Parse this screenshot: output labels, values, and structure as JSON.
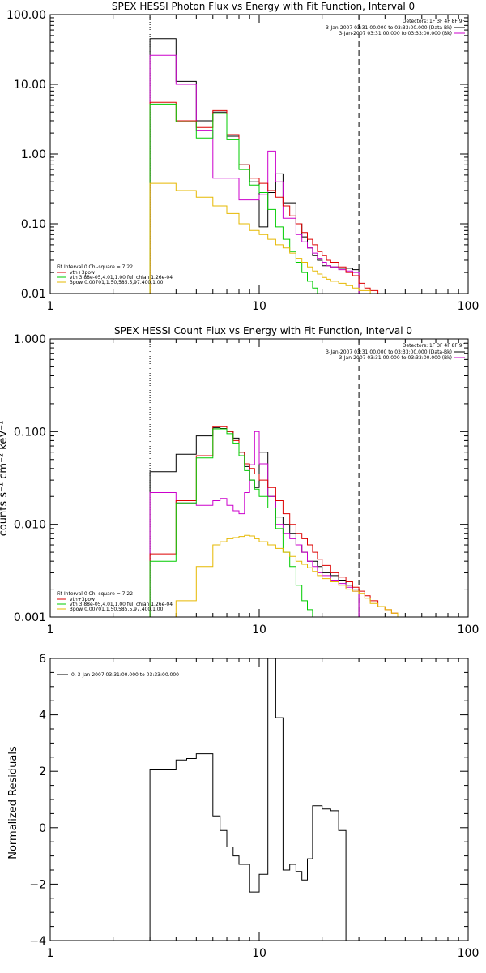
{
  "chart_data": [
    {
      "id": "photon",
      "type": "line",
      "title": "SPEX HESSI Photon Flux vs Energy with Fit Function, Interval 0",
      "xscale": "log",
      "yscale": "log",
      "xlim": [
        1,
        100
      ],
      "ylim": [
        0.01,
        100
      ],
      "xticks": [
        1,
        10,
        100
      ],
      "xtick_labels": [
        "1",
        "10",
        "100"
      ],
      "yticks": [
        0.01,
        0.1,
        1,
        10,
        100
      ],
      "ytick_labels": [
        "0.01",
        "0.10",
        "1.00",
        "10.00",
        "100.00"
      ],
      "vlines": [
        {
          "x": 3,
          "style": "dotted"
        },
        {
          "x": 30,
          "style": "dashed"
        }
      ],
      "legend_right": [
        "Detectors: 1F 3F 4F 8F 9F",
        "3-Jan-2007 03:31:00.000 to 03:33:00.000 (Data-Bk)",
        "3-Jan-2007 03:31:00.000 to 03:33:00.000 (Bk)"
      ],
      "legend_left": [
        "Fit Interval 0   Chi-square = 7.22",
        "vth+3pow",
        "vth 3.88e-05,4.01,1.00  full chian 1.26e-04",
        "3pow 0.00701,1.50,585.5,97.400,1.00"
      ],
      "edges": [
        3,
        3.5,
        4,
        4.5,
        5,
        5.5,
        6,
        6.5,
        7,
        7.5,
        8,
        8.5,
        9,
        9.5,
        10,
        10.5,
        11,
        11.5,
        12,
        12.5,
        13,
        14,
        15,
        16,
        17,
        18,
        19,
        20,
        21,
        22,
        24,
        26,
        28,
        30,
        32,
        34,
        37,
        40,
        43
      ],
      "series": [
        {
          "color": "#000000",
          "values": [
            45,
            45,
            11,
            11,
            3,
            3,
            4,
            4,
            1.8,
            1.8,
            0.7,
            0.7,
            0.4,
            0.4,
            0.09,
            0.09,
            0.28,
            0.28,
            0.52,
            0.52,
            0.2,
            0.2,
            0.1,
            0.065,
            0.045,
            0.035,
            0.03,
            0.025,
            0.025,
            0.024,
            0.023,
            0.023,
            0.022,
            null,
            null,
            null,
            null,
            null
          ]
        },
        {
          "color": "#cc00cc",
          "values": [
            26,
            26,
            10,
            10,
            2.2,
            2.2,
            0.45,
            0.45,
            0.45,
            0.45,
            0.22,
            0.22,
            0.22,
            0.22,
            0.26,
            0.26,
            1.1,
            1.1,
            0.4,
            0.4,
            0.12,
            0.12,
            0.07,
            0.055,
            0.045,
            0.038,
            0.032,
            0.028,
            0.025,
            0.024,
            0.022,
            0.021,
            0.02,
            null,
            null,
            null,
            null,
            null
          ]
        },
        {
          "color": "#dd0000",
          "values": [
            5.5,
            5.5,
            3,
            3,
            2.4,
            2.4,
            4.2,
            4.2,
            1.9,
            1.9,
            0.7,
            0.7,
            0.45,
            0.45,
            0.38,
            0.38,
            0.3,
            0.3,
            0.24,
            0.24,
            0.18,
            0.13,
            0.1,
            0.075,
            0.06,
            0.05,
            0.04,
            0.035,
            0.03,
            0.028,
            0.024,
            0.02,
            0.018,
            0.014,
            0.012,
            0.011,
            0.01,
            null
          ]
        },
        {
          "color": "#00cc00",
          "values": [
            5.2,
            5.2,
            2.9,
            2.9,
            1.7,
            1.7,
            3.8,
            3.8,
            1.6,
            1.6,
            0.6,
            0.6,
            0.36,
            0.36,
            0.28,
            0.28,
            0.16,
            0.16,
            0.09,
            0.09,
            0.06,
            0.04,
            0.028,
            0.02,
            0.015,
            0.012,
            0.01,
            null,
            null,
            null,
            null,
            null,
            null,
            null,
            null,
            null,
            null,
            null
          ]
        },
        {
          "color": "#e6b800",
          "values": [
            0.38,
            0.38,
            0.3,
            0.3,
            0.24,
            0.24,
            0.18,
            0.18,
            0.14,
            0.14,
            0.1,
            0.1,
            0.08,
            0.08,
            0.07,
            0.07,
            0.06,
            0.06,
            0.05,
            0.05,
            0.045,
            0.038,
            0.032,
            0.028,
            0.024,
            0.021,
            0.019,
            0.017,
            0.016,
            0.015,
            0.014,
            0.013,
            0.012,
            0.011,
            0.011,
            0.01,
            0.01,
            0.01
          ]
        }
      ]
    },
    {
      "id": "count",
      "type": "line",
      "title": "SPEX HESSI Count Flux vs Energy with Fit Function, Interval 0",
      "ylabel": "counts s⁻¹ cm⁻² keV⁻¹",
      "xscale": "log",
      "yscale": "log",
      "xlim": [
        1,
        100
      ],
      "ylim": [
        0.001,
        1
      ],
      "xticks": [
        1,
        10,
        100
      ],
      "xtick_labels": [
        "1",
        "10",
        "100"
      ],
      "yticks": [
        0.001,
        0.01,
        0.1,
        1
      ],
      "ytick_labels": [
        "0.001",
        "0.010",
        "0.100",
        "1.000"
      ],
      "vlines": [
        {
          "x": 3,
          "style": "dotted"
        },
        {
          "x": 30,
          "style": "dashed"
        }
      ],
      "legend_right": [
        "Detectors: 1F 3F 4F 8F 9F",
        "3-Jan-2007 03:31:00.000 to 03:33:00.000 (Data-Bk)",
        "3-Jan-2007 03:31:00.000 to 03:33:00.000 (Bk)"
      ],
      "legend_left": [
        "Fit Interval 0   Chi-square = 7.22",
        "vth+3pow",
        "vth 3.88e-05,4.01,1.00  full chian 1.26e-04",
        "3pow 0.00701,1.50,585.5,97.400,1.00"
      ],
      "edges": [
        3,
        4,
        5,
        6,
        6.5,
        7,
        7.5,
        8,
        8.5,
        9,
        9.5,
        10,
        11,
        12,
        13,
        14,
        15,
        16,
        17,
        18,
        19,
        20,
        22,
        24,
        26,
        28,
        30,
        32,
        34,
        37,
        40,
        43,
        46,
        50,
        54,
        58,
        62
      ],
      "series": [
        {
          "color": "#000000",
          "values": [
            0.037,
            0.057,
            0.09,
            0.11,
            0.108,
            0.1,
            0.085,
            0.06,
            0.042,
            0.03,
            0.025,
            0.06,
            0.02,
            0.012,
            0.01,
            0.008,
            0.006,
            0.005,
            0.004,
            0.004,
            0.0035,
            0.003,
            0.0028,
            0.0025,
            0.0022,
            0.002,
            null,
            null,
            null,
            null,
            null,
            null,
            null,
            null,
            null,
            null
          ]
        },
        {
          "color": "#cc00cc",
          "values": [
            0.022,
            0.017,
            0.016,
            0.018,
            0.019,
            0.016,
            0.014,
            0.013,
            0.022,
            0.044,
            0.1,
            0.045,
            0.02,
            0.01,
            0.008,
            0.007,
            0.006,
            0.005,
            0.004,
            0.0035,
            0.003,
            0.0028,
            0.0025,
            0.0023,
            0.0021,
            0.0019,
            null,
            null,
            null,
            null,
            null,
            null,
            null,
            null,
            null,
            null
          ]
        },
        {
          "color": "#dd0000",
          "values": [
            0.0048,
            0.018,
            0.055,
            0.113,
            0.113,
            0.1,
            0.08,
            0.06,
            0.045,
            0.04,
            0.035,
            0.03,
            0.025,
            0.018,
            0.013,
            0.01,
            0.008,
            0.007,
            0.006,
            0.005,
            0.0042,
            0.0036,
            0.003,
            0.0027,
            0.0024,
            0.0021,
            0.0019,
            0.0017,
            0.0015,
            0.0013,
            0.0012,
            0.0011,
            0.001,
            null,
            null,
            null
          ]
        },
        {
          "color": "#00cc00",
          "values": [
            0.004,
            0.017,
            0.052,
            0.107,
            0.107,
            0.095,
            0.075,
            0.055,
            0.038,
            0.03,
            0.024,
            0.02,
            0.015,
            0.009,
            0.005,
            0.0035,
            0.0022,
            0.0015,
            0.0012,
            0.001,
            null,
            null,
            null,
            null,
            null,
            null,
            null,
            null,
            null,
            null,
            null,
            null,
            null,
            null,
            null,
            null
          ]
        },
        {
          "color": "#e6b800",
          "values": [
            0.001,
            0.0015,
            0.0035,
            0.006,
            0.0065,
            0.007,
            0.0072,
            0.0074,
            0.0076,
            0.0075,
            0.007,
            0.0065,
            0.006,
            0.0055,
            0.005,
            0.0045,
            0.004,
            0.0037,
            0.0034,
            0.0031,
            0.0028,
            0.0026,
            0.0024,
            0.0022,
            0.002,
            0.0019,
            0.0018,
            0.0016,
            0.0014,
            0.0013,
            0.0012,
            0.0011,
            0.001,
            0.001,
            0.001,
            0.001
          ]
        }
      ]
    },
    {
      "id": "residuals",
      "type": "line",
      "title": "",
      "ylabel": "Normalized Residuals",
      "xscale": "log",
      "yscale": "linear",
      "xlim": [
        1,
        100
      ],
      "ylim": [
        -4,
        6
      ],
      "xticks": [
        1,
        10,
        100
      ],
      "xtick_labels": [
        "1",
        "10",
        "100"
      ],
      "yticks": [
        -4,
        -2,
        0,
        2,
        4,
        6
      ],
      "ytick_labels": [
        "−4",
        "−2",
        "0",
        "2",
        "4",
        "6"
      ],
      "legend_left": [
        "0. 3-Jan-2007 03:31:00.000 to 03:33:00.000"
      ],
      "edges": [
        3,
        4,
        4.5,
        5,
        6,
        6.5,
        7,
        7.5,
        8,
        9,
        10,
        11,
        12,
        13,
        14,
        15,
        16,
        17,
        18,
        20,
        22,
        24,
        26,
        28,
        30
      ],
      "series": [
        {
          "color": "#000000",
          "values": [
            2.05,
            2.4,
            2.45,
            2.62,
            0.42,
            -0.1,
            -0.68,
            -1.0,
            -1.3,
            -2.28,
            -1.65,
            6.0,
            3.9,
            -1.5,
            -1.3,
            -1.55,
            -1.85,
            -1.1,
            0.78,
            0.66,
            0.6,
            -0.1,
            null,
            null
          ]
        }
      ]
    }
  ]
}
